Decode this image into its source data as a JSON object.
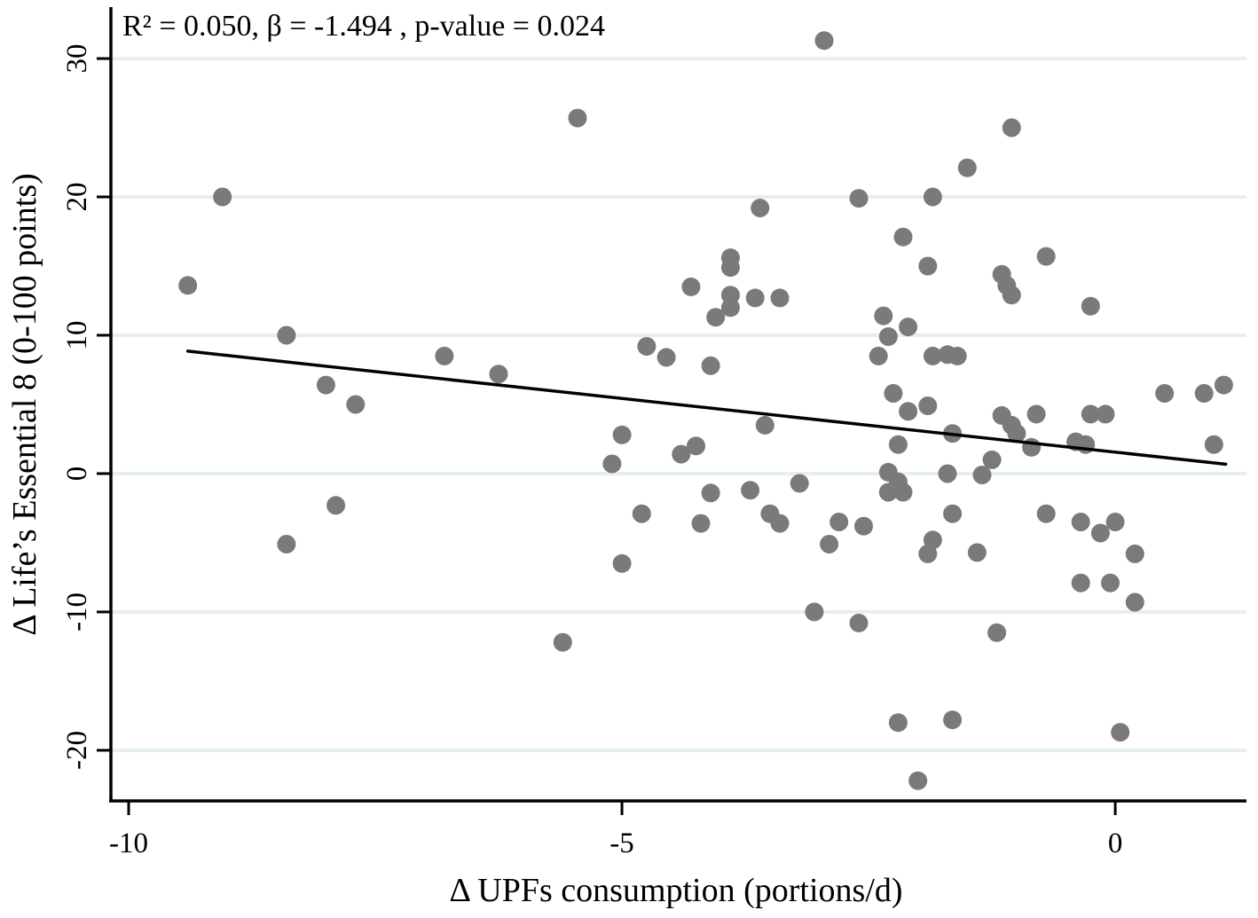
{
  "figure": {
    "kind": "statistical scatter plot with fitted regression line",
    "background": "#ffffff"
  },
  "chart_data": {
    "type": "scatter",
    "annotation": "R² = 0.050, β = -1.494 , p-value = 0.024",
    "stats": {
      "r_squared": 0.05,
      "beta": -1.494,
      "p_value": 0.024
    },
    "xlabel": "Δ UPFs consumption (portions/d)",
    "ylabel": "Δ Life’s Essential 8 (0-100 points)",
    "xlim": [
      -10.18,
      1.33
    ],
    "ylim": [
      -23.66,
      33.72
    ],
    "x_ticks": [
      -10,
      -5,
      0
    ],
    "y_ticks": [
      30,
      20,
      10,
      0,
      -10,
      -20
    ],
    "grid": "horizontal gridlines at every y tick",
    "legend": "none",
    "regression_line": {
      "x1": -9.4,
      "y1": 8.85,
      "x2": 1.12,
      "y2": 0.68
    },
    "point_color": "#7a7a7a",
    "grid_color": "#e5efee",
    "axis_color": "#000000",
    "line_color": "#000000",
    "point_radius_px": 10.5,
    "points": [
      [
        -9.4,
        13.6
      ],
      [
        -9.05,
        20.0
      ],
      [
        -8.4,
        10.0
      ],
      [
        -8.4,
        -5.1
      ],
      [
        -8.0,
        6.4
      ],
      [
        -7.9,
        -2.3
      ],
      [
        -7.7,
        5.0
      ],
      [
        -6.8,
        8.5
      ],
      [
        -6.25,
        7.2
      ],
      [
        -5.6,
        -12.2
      ],
      [
        -5.45,
        25.7
      ],
      [
        -5.1,
        0.7
      ],
      [
        -5.0,
        2.8
      ],
      [
        -5.0,
        -6.5
      ],
      [
        -4.8,
        -2.9
      ],
      [
        -4.75,
        9.2
      ],
      [
        -4.55,
        8.4
      ],
      [
        -4.4,
        1.4
      ],
      [
        -4.3,
        13.5
      ],
      [
        -4.25,
        2.0
      ],
      [
        -4.2,
        -3.6
      ],
      [
        -4.1,
        7.8
      ],
      [
        -4.05,
        11.3
      ],
      [
        -4.1,
        -1.4
      ],
      [
        -3.9,
        15.6
      ],
      [
        -3.9,
        14.9
      ],
      [
        -3.9,
        12.9
      ],
      [
        -3.9,
        12.0
      ],
      [
        -3.65,
        12.7
      ],
      [
        -3.4,
        12.7
      ],
      [
        -3.7,
        -1.2
      ],
      [
        -3.6,
        19.2
      ],
      [
        -3.55,
        3.5
      ],
      [
        -3.5,
        -2.9
      ],
      [
        -3.4,
        -3.6
      ],
      [
        -3.2,
        -0.7
      ],
      [
        -3.05,
        -10.0
      ],
      [
        -2.95,
        31.3
      ],
      [
        -2.9,
        -5.1
      ],
      [
        -2.8,
        -3.5
      ],
      [
        -2.6,
        19.9
      ],
      [
        -2.6,
        -10.8
      ],
      [
        -2.55,
        -3.8
      ],
      [
        -2.4,
        8.5
      ],
      [
        -2.35,
        11.4
      ],
      [
        -2.3,
        9.9
      ],
      [
        -2.3,
        0.1
      ],
      [
        -2.3,
        -1.35
      ],
      [
        -2.25,
        5.8
      ],
      [
        -2.2,
        2.1
      ],
      [
        -2.2,
        -0.6
      ],
      [
        -2.15,
        -1.35
      ],
      [
        -2.15,
        17.1
      ],
      [
        -2.1,
        10.6
      ],
      [
        -2.1,
        4.5
      ],
      [
        -2.2,
        -18.0
      ],
      [
        -2.0,
        -22.2
      ],
      [
        -1.9,
        15.0
      ],
      [
        -1.9,
        4.9
      ],
      [
        -1.85,
        8.5
      ],
      [
        -1.85,
        -4.8
      ],
      [
        -1.9,
        -5.8
      ],
      [
        -1.85,
        20.0
      ],
      [
        -1.7,
        8.6
      ],
      [
        -1.7,
        0.0
      ],
      [
        -1.65,
        2.9
      ],
      [
        -1.65,
        -2.9
      ],
      [
        -1.65,
        -17.8
      ],
      [
        -1.6,
        8.5
      ],
      [
        -1.5,
        22.1
      ],
      [
        -1.4,
        -5.7
      ],
      [
        -1.35,
        -0.1
      ],
      [
        -1.25,
        1.0
      ],
      [
        -1.2,
        -11.5
      ],
      [
        -1.15,
        14.4
      ],
      [
        -1.1,
        13.6
      ],
      [
        -1.05,
        12.9
      ],
      [
        -1.05,
        25.0
      ],
      [
        -1.15,
        4.2
      ],
      [
        -1.05,
        3.5
      ],
      [
        -1.0,
        2.9
      ],
      [
        -0.85,
        1.9
      ],
      [
        -0.8,
        4.3
      ],
      [
        -0.7,
        15.7
      ],
      [
        -0.7,
        -2.9
      ],
      [
        -0.4,
        2.3
      ],
      [
        -0.3,
        2.1
      ],
      [
        -0.35,
        -3.5
      ],
      [
        -0.35,
        -7.9
      ],
      [
        -0.25,
        12.1
      ],
      [
        -0.25,
        4.3
      ],
      [
        -0.15,
        -4.3
      ],
      [
        -0.1,
        4.3
      ],
      [
        -0.05,
        -7.9
      ],
      [
        0.0,
        -3.5
      ],
      [
        0.05,
        -18.7
      ],
      [
        0.2,
        -5.8
      ],
      [
        0.2,
        -9.3
      ],
      [
        0.5,
        5.8
      ],
      [
        0.9,
        5.8
      ],
      [
        1.0,
        2.1
      ],
      [
        1.1,
        6.4
      ]
    ]
  }
}
